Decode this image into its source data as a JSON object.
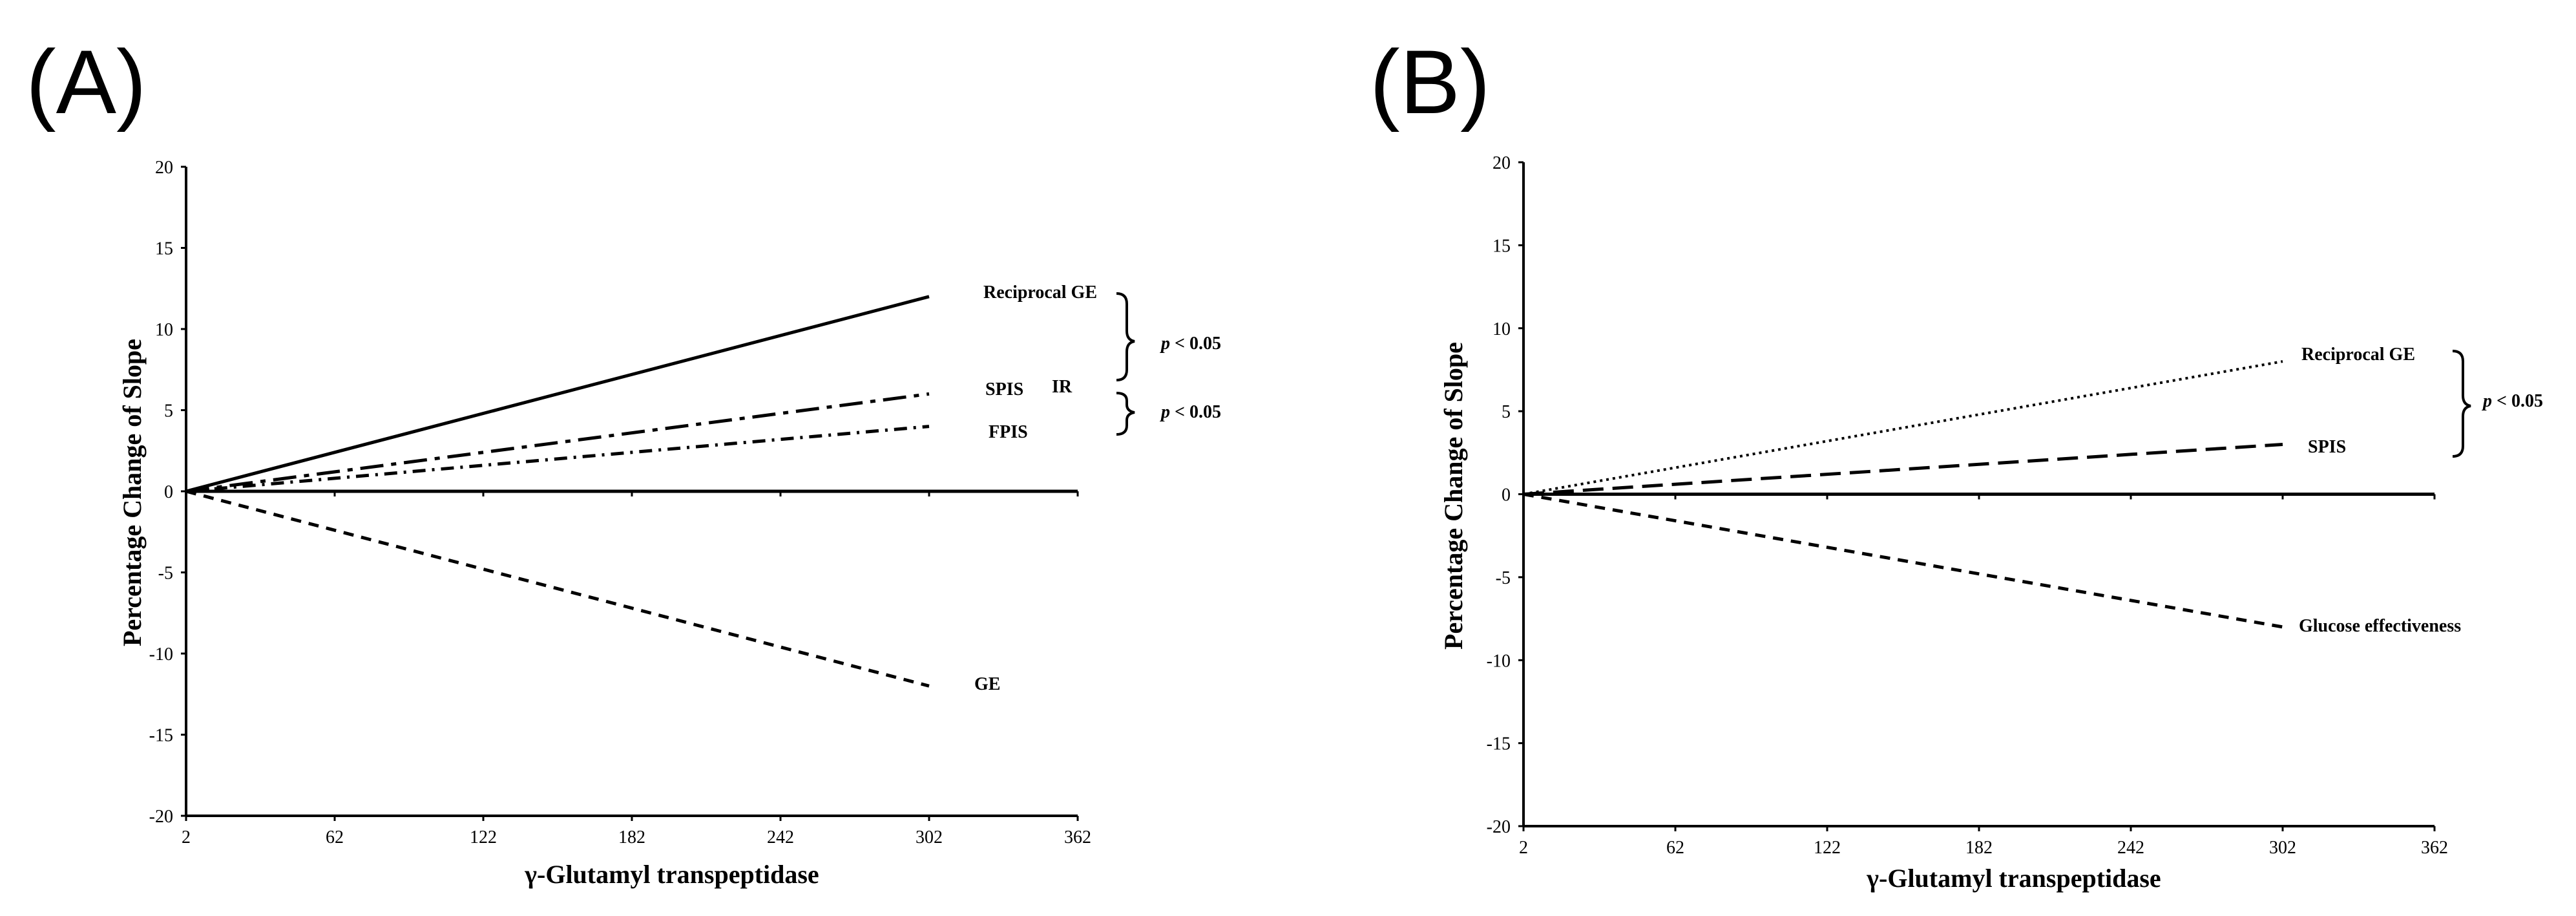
{
  "chart_data": [
    {
      "panel": "(A)",
      "type": "line",
      "xlabel": "γ-Glutamyl transpeptidase",
      "ylabel": "Percentage Change of  Slope",
      "xlim": [
        2,
        362
      ],
      "ylim": [
        -20,
        20
      ],
      "x_ticks": [
        "2",
        "62",
        "122",
        "182",
        "242",
        "302",
        "362"
      ],
      "y_ticks": [
        "20",
        "15",
        "10",
        "5",
        "0",
        "-5",
        "-10",
        "-15",
        "-20"
      ],
      "series": [
        {
          "name": "Reciprocal GE",
          "style": "solid",
          "x": [
            2,
            302
          ],
          "y": [
            0,
            12
          ]
        },
        {
          "name": "SPIS",
          "style": "dashdot-long",
          "x": [
            2,
            302
          ],
          "y": [
            0,
            6
          ]
        },
        {
          "name": "FPIS",
          "style": "dashdot",
          "x": [
            2,
            302
          ],
          "y": [
            0,
            4
          ]
        },
        {
          "name": "GE",
          "style": "dashed",
          "x": [
            2,
            302
          ],
          "y": [
            0,
            -12
          ]
        }
      ],
      "extra_labels": [
        "IR"
      ],
      "annotations": [
        {
          "p_symbol": "p",
          "text": " < 0.05",
          "between": [
            "Reciprocal GE",
            "SPIS"
          ]
        },
        {
          "p_symbol": "p",
          "text": " < 0.05",
          "between": [
            "SPIS",
            "FPIS"
          ]
        }
      ]
    },
    {
      "panel": "(B)",
      "type": "line",
      "xlabel": "γ-Glutamyl transpeptidase",
      "ylabel": "Percentage Change of  Slope",
      "xlim": [
        2,
        362
      ],
      "ylim": [
        -20,
        20
      ],
      "x_ticks": [
        "2",
        "62",
        "122",
        "182",
        "242",
        "302",
        "362"
      ],
      "y_ticks": [
        "20",
        "15",
        "10",
        "5",
        "0",
        "-5",
        "-10",
        "-15",
        "-20"
      ],
      "series": [
        {
          "name": "Reciprocal GE",
          "style": "dotted",
          "x": [
            2,
            302
          ],
          "y": [
            0,
            8
          ]
        },
        {
          "name": "SPIS",
          "style": "longdash",
          "x": [
            2,
            302
          ],
          "y": [
            0,
            3
          ]
        },
        {
          "name": "Glucose effectiveness",
          "style": "dashed",
          "x": [
            2,
            302
          ],
          "y": [
            0,
            -8
          ]
        }
      ],
      "annotations": [
        {
          "p_symbol": "p",
          "text": " < 0.05",
          "between": [
            "Reciprocal GE",
            "SPIS"
          ]
        }
      ]
    }
  ]
}
